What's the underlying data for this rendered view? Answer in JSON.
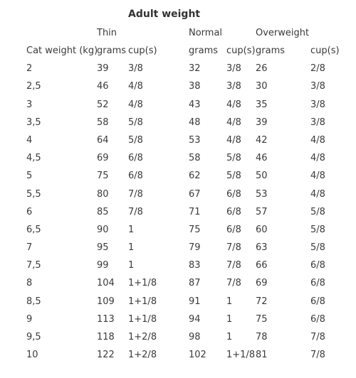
{
  "title": "Adult weight",
  "groups": {
    "thin": "Thin",
    "normal": "Normal",
    "overweight": "Overweight"
  },
  "headers": [
    "Cat weight (kg)",
    "grams",
    "cup(s)",
    "grams",
    "cup(s)",
    "grams",
    "cup(s)"
  ],
  "rows": [
    [
      "2",
      "39",
      "3/8",
      "32",
      "3/8",
      "26",
      "2/8"
    ],
    [
      "2,5",
      "46",
      "4/8",
      "38",
      "3/8",
      "30",
      "3/8"
    ],
    [
      "3",
      "52",
      "4/8",
      "43",
      "4/8",
      "35",
      "3/8"
    ],
    [
      "3,5",
      "58",
      "5/8",
      "48",
      "4/8",
      "39",
      "3/8"
    ],
    [
      "4",
      "64",
      "5/8",
      "53",
      "4/8",
      "42",
      "4/8"
    ],
    [
      "4,5",
      "69",
      "6/8",
      "58",
      "5/8",
      "46",
      "4/8"
    ],
    [
      "5",
      "75",
      "6/8",
      "62",
      "5/8",
      "50",
      "4/8"
    ],
    [
      "5,5",
      "80",
      "7/8",
      "67",
      "6/8",
      "53",
      "4/8"
    ],
    [
      "6",
      "85",
      "7/8",
      "71",
      "6/8",
      "57",
      "5/8"
    ],
    [
      "6,5",
      "90",
      "1",
      "75",
      "6/8",
      "60",
      "5/8"
    ],
    [
      "7",
      "95",
      "1",
      "79",
      "7/8",
      "63",
      "5/8"
    ],
    [
      "7,5",
      "99",
      "1",
      "83",
      "7/8",
      "66",
      "6/8"
    ],
    [
      "8",
      "104",
      "1+1/8",
      "87",
      "7/8",
      "69",
      "6/8"
    ],
    [
      "8,5",
      "109",
      "1+1/8",
      "91",
      "1",
      "72",
      "6/8"
    ],
    [
      "9",
      "113",
      "1+1/8",
      "94",
      "1",
      "75",
      "6/8"
    ],
    [
      "9,5",
      "118",
      "1+2/8",
      "98",
      "1",
      "78",
      "7/8"
    ],
    [
      "10",
      "122",
      "1+2/8",
      "102",
      "1+1/8",
      "81",
      "7/8"
    ]
  ]
}
